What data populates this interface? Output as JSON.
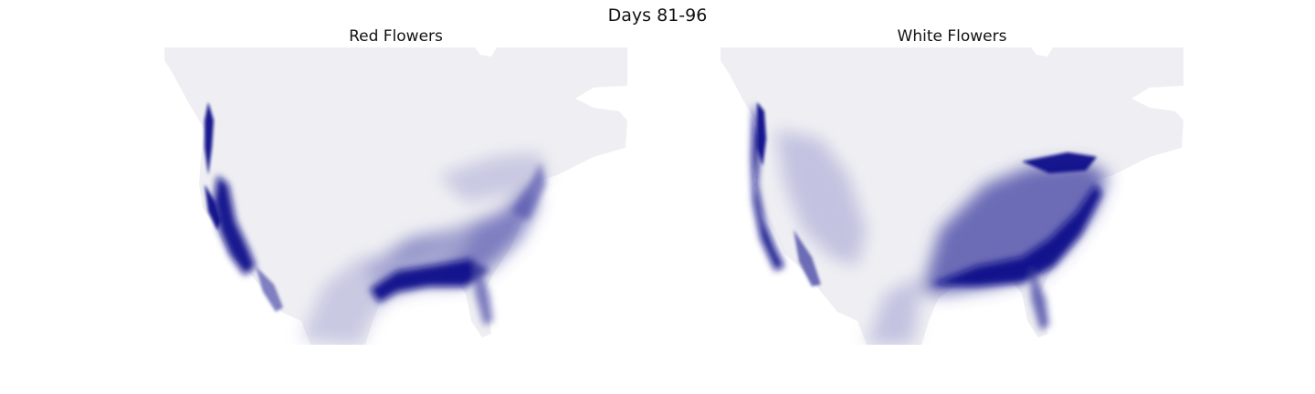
{
  "figure": {
    "title": "Days 81-96"
  },
  "panels": [
    {
      "title": "Red Flowers",
      "colors": {
        "land": "#efeff3",
        "high": "#10108a",
        "mid": "#5a5ab0",
        "low": "#b8b8dc"
      }
    },
    {
      "title": "White Flowers",
      "colors": {
        "land": "#efeff3",
        "high": "#10108a",
        "mid": "#4a4aa8",
        "low": "#b0b0d8"
      }
    }
  ]
}
